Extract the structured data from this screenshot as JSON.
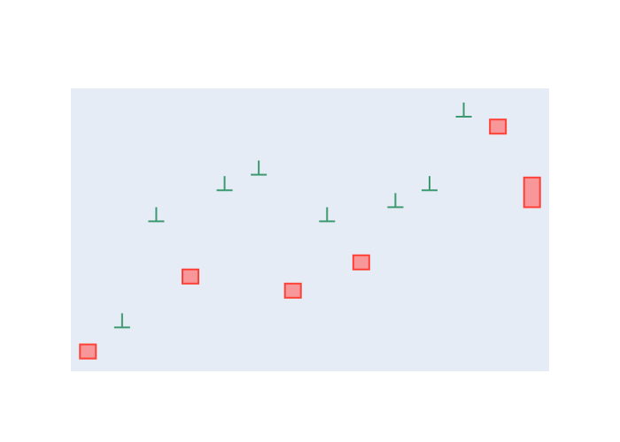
{
  "chart_data": {
    "type": "candlestick",
    "title": "",
    "xlabel": "",
    "ylabel": "",
    "grid": false,
    "legend": "none",
    "xlim": [
      0,
      14
    ],
    "ylim": [
      0,
      100
    ],
    "colors": {
      "plot_background": "#e5ecf6",
      "increasing": "#3d9970",
      "decreasing": "#ff4136",
      "decreasing_fill": "#f8979a"
    },
    "candles": [
      {
        "x": 0.5,
        "open": 9.5,
        "high": 9.5,
        "low": 4.5,
        "close": 4.5,
        "direction": "decreasing"
      },
      {
        "x": 1.5,
        "open": 15.5,
        "high": 20.5,
        "low": 15.5,
        "close": 15.5,
        "direction": "increasing"
      },
      {
        "x": 2.5,
        "open": 53,
        "high": 58,
        "low": 53,
        "close": 53,
        "direction": "increasing"
      },
      {
        "x": 3.5,
        "open": 36,
        "high": 36,
        "low": 31,
        "close": 31,
        "direction": "decreasing"
      },
      {
        "x": 4.5,
        "open": 64,
        "high": 69,
        "low": 64,
        "close": 64,
        "direction": "increasing"
      },
      {
        "x": 5.5,
        "open": 69.5,
        "high": 74.5,
        "low": 69.5,
        "close": 69.5,
        "direction": "increasing"
      },
      {
        "x": 6.5,
        "open": 31,
        "high": 31,
        "low": 26,
        "close": 26,
        "direction": "decreasing"
      },
      {
        "x": 7.5,
        "open": 53,
        "high": 58,
        "low": 53,
        "close": 53,
        "direction": "increasing"
      },
      {
        "x": 8.5,
        "open": 41,
        "high": 41,
        "low": 36,
        "close": 36,
        "direction": "decreasing"
      },
      {
        "x": 9.5,
        "open": 58,
        "high": 63,
        "low": 58,
        "close": 58,
        "direction": "increasing"
      },
      {
        "x": 10.5,
        "open": 64,
        "high": 69,
        "low": 64,
        "close": 64,
        "direction": "increasing"
      },
      {
        "x": 11.5,
        "open": 90,
        "high": 95,
        "low": 90,
        "close": 90,
        "direction": "increasing"
      },
      {
        "x": 12.5,
        "open": 89,
        "high": 89,
        "low": 84,
        "close": 84,
        "direction": "decreasing"
      },
      {
        "x": 13.5,
        "open": 68.5,
        "high": 68.5,
        "low": 58,
        "close": 58,
        "direction": "decreasing"
      }
    ]
  }
}
